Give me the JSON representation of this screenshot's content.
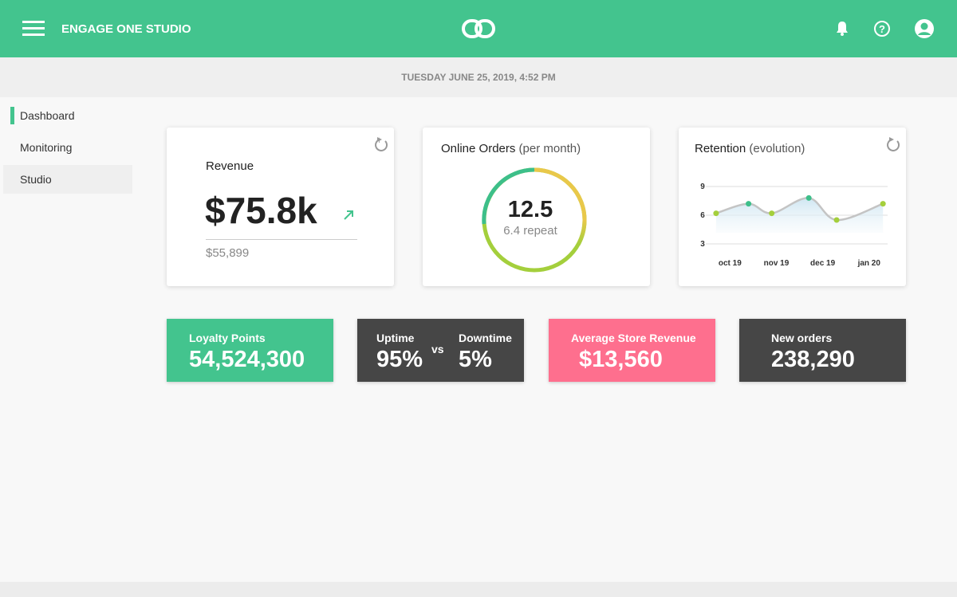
{
  "header": {
    "title": "ENGAGE ONE STUDIO"
  },
  "date": "TUESDAY JUNE 25, 2019, 4:52 PM",
  "sidebar": {
    "items": [
      "Dashboard",
      "Monitoring",
      "Studio"
    ]
  },
  "revenue": {
    "title": "Revenue",
    "value": "$75.8k",
    "previous": "$55,899"
  },
  "orders": {
    "title": "Online Orders",
    "subtitle": "(per month)",
    "value": "12.5",
    "note": "6.4 repeat"
  },
  "retention": {
    "title": "Retention",
    "subtitle": "(evolution)",
    "chart_data": {
      "type": "line",
      "x": [
        -0.3,
        0.4,
        0.9,
        1.7,
        2.3,
        3.3
      ],
      "series": [
        {
          "color": "#c4c4c4",
          "values": [
            6.2,
            7.2,
            6.2,
            7.8,
            5.5,
            7.2
          ],
          "point_colors": [
            "#a4cf3c",
            "#3dbf8a",
            "#a4cf3c",
            "#3dbf8a",
            "#a4cf3c",
            "#a4cf3c"
          ]
        }
      ],
      "xlim": [
        -0.35,
        3.4
      ],
      "xticks": [
        {
          "value": 0,
          "label": "oct 19"
        },
        {
          "value": 1,
          "label": "nov 19"
        },
        {
          "value": 2,
          "label": "dec 19"
        },
        {
          "value": 3,
          "label": "jan 20"
        }
      ],
      "ylim": [
        2.5,
        9.5
      ],
      "yticks": [
        3,
        6,
        9
      ],
      "grid": true
    }
  },
  "tiles": {
    "loyalty": {
      "label": "Loyalty Points",
      "value": "54,524,300"
    },
    "uptime": {
      "label": "Uptime",
      "value": "95%",
      "vs": "vs",
      "label2": "Downtime",
      "value2": "5%"
    },
    "store": {
      "label": "Average Store Revenue",
      "value": "$13,560"
    },
    "new_orders": {
      "label": "New orders",
      "value": "238,290"
    }
  }
}
